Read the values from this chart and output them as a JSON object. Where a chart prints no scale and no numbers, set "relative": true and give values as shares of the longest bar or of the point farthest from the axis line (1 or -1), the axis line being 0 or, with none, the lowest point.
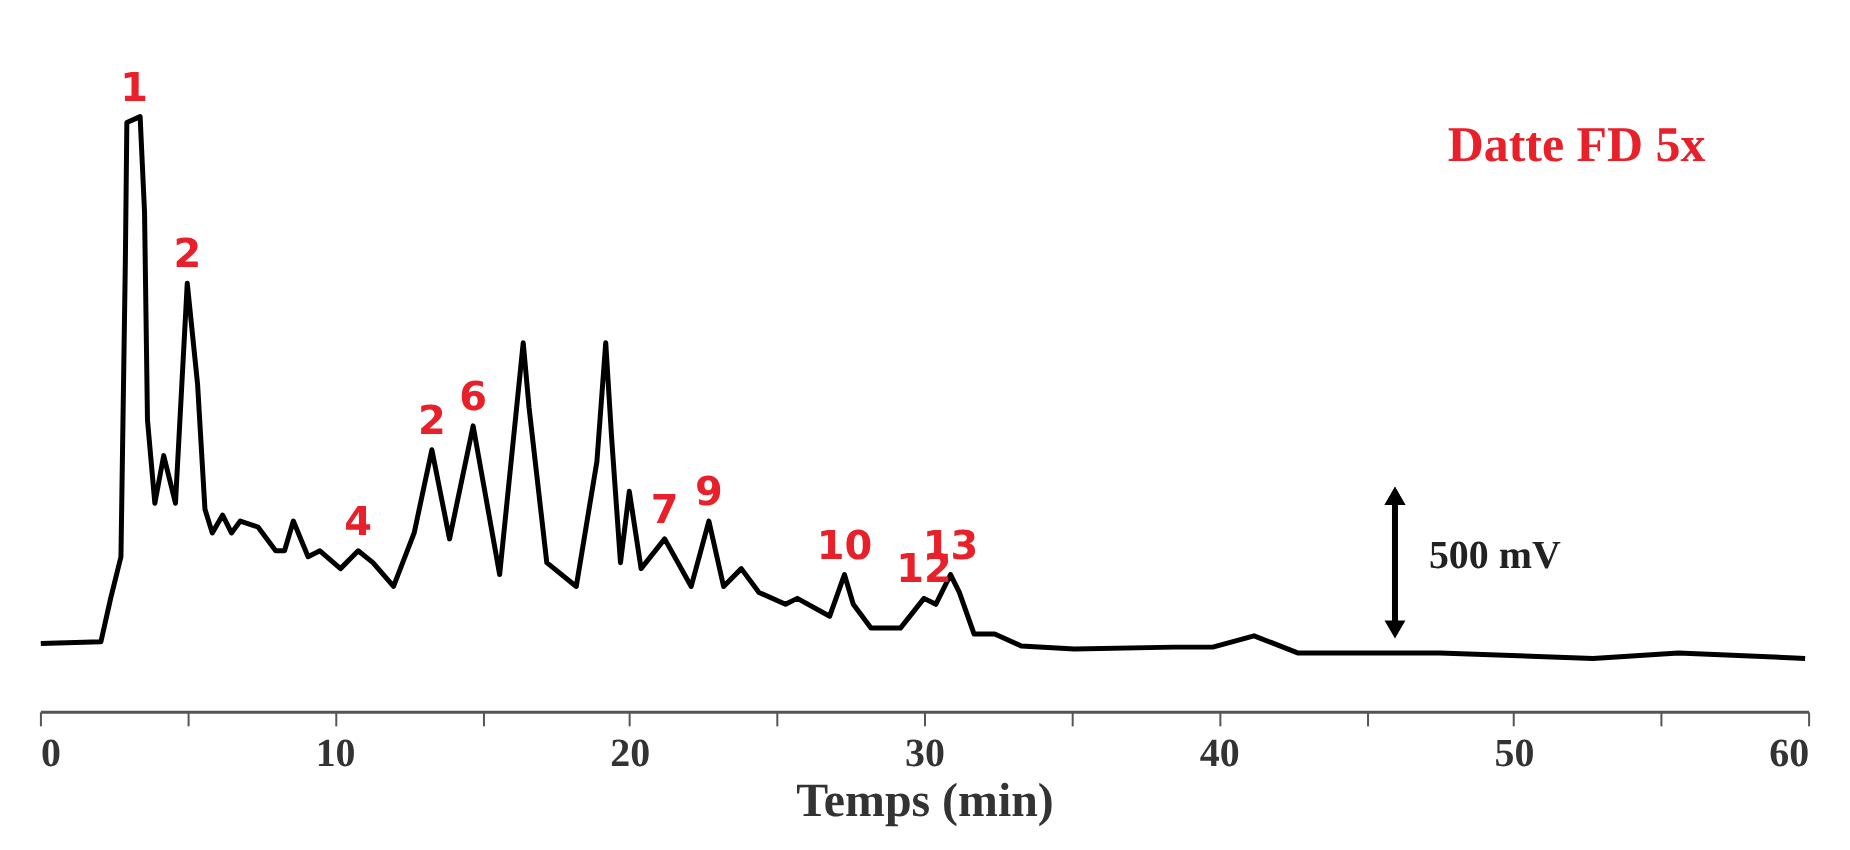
{
  "chart_data": {
    "type": "line",
    "title": "Datte FD 5x",
    "xlabel": "Temps (min)",
    "relative": true,
    "xlim": [
      0,
      60
    ],
    "xticks": [
      0,
      {
        "value": 5,
        "label": null
      },
      10,
      {
        "value": 15,
        "label": null
      },
      20,
      {
        "value": 25,
        "label": null
      },
      30,
      {
        "value": 35,
        "label": null
      },
      40,
      {
        "value": 45,
        "label": null
      },
      50,
      {
        "value": 55,
        "label": null
      },
      60
    ],
    "grid": false,
    "marker": "none",
    "line_style": "solid",
    "series": [
      {
        "color": "#000000",
        "x": [
          0.03,
          2.07,
          2.4,
          2.75,
          2.9,
          2.95,
          3.4,
          3.55,
          3.65,
          3.9,
          4.2,
          4.6,
          5.0,
          5.35,
          5.6,
          5.85,
          6.2,
          6.5,
          6.8,
          7.4,
          8.0,
          8.3,
          8.6,
          9.1,
          9.5,
          10.2,
          10.8,
          11.3,
          12.0,
          12.7,
          13.3,
          13.9,
          14.7,
          15.6,
          16.4,
          16.6,
          17.2,
          18.2,
          18.9,
          19.2,
          19.4,
          19.7,
          20.0,
          20.4,
          21.2,
          22.1,
          22.7,
          23.2,
          23.8,
          24.4,
          25.3,
          25.7,
          26.8,
          27.3,
          27.6,
          28.2,
          29.2,
          30.0,
          30.4,
          30.9,
          31.2,
          31.7,
          32.4,
          33.3,
          35.1,
          38.5,
          39.8,
          41.2,
          42.7,
          47.5,
          52.7,
          55.6,
          59.9
        ],
        "values": [
          0.114,
          0.117,
          0.19,
          0.26,
          0.76,
          0.99,
          1.0,
          0.84,
          0.49,
          0.35,
          0.43,
          0.35,
          0.72,
          0.55,
          0.34,
          0.3,
          0.33,
          0.3,
          0.32,
          0.31,
          0.27,
          0.27,
          0.32,
          0.26,
          0.27,
          0.24,
          0.27,
          0.25,
          0.21,
          0.3,
          0.44,
          0.29,
          0.48,
          0.23,
          0.62,
          0.51,
          0.25,
          0.21,
          0.42,
          0.62,
          0.46,
          0.25,
          0.37,
          0.24,
          0.29,
          0.21,
          0.32,
          0.21,
          0.24,
          0.2,
          0.18,
          0.19,
          0.16,
          0.23,
          0.18,
          0.14,
          0.14,
          0.19,
          0.18,
          0.23,
          0.2,
          0.13,
          0.13,
          0.11,
          0.105,
          0.108,
          0.108,
          0.127,
          0.098,
          0.098,
          0.089,
          0.098,
          0.089
        ]
      }
    ],
    "annotations": [
      {
        "text": "1",
        "x": 3.2,
        "y": 1.0
      },
      {
        "text": "2",
        "x": 5.0,
        "y": 0.72
      },
      {
        "text": "4",
        "x": 10.8,
        "y": 0.27
      },
      {
        "text": "2",
        "x": 13.3,
        "y": 0.44
      },
      {
        "text": "6",
        "x": 14.7,
        "y": 0.48
      },
      {
        "text": "7",
        "x": 21.2,
        "y": 0.29
      },
      {
        "text": "9",
        "x": 22.7,
        "y": 0.32
      },
      {
        "text": "10",
        "x": 27.3,
        "y": 0.23
      },
      {
        "text": "12",
        "x": 30.0,
        "y": 0.19
      },
      {
        "text": "13",
        "x": 30.9,
        "y": 0.23
      },
      "500 mV"
    ]
  }
}
